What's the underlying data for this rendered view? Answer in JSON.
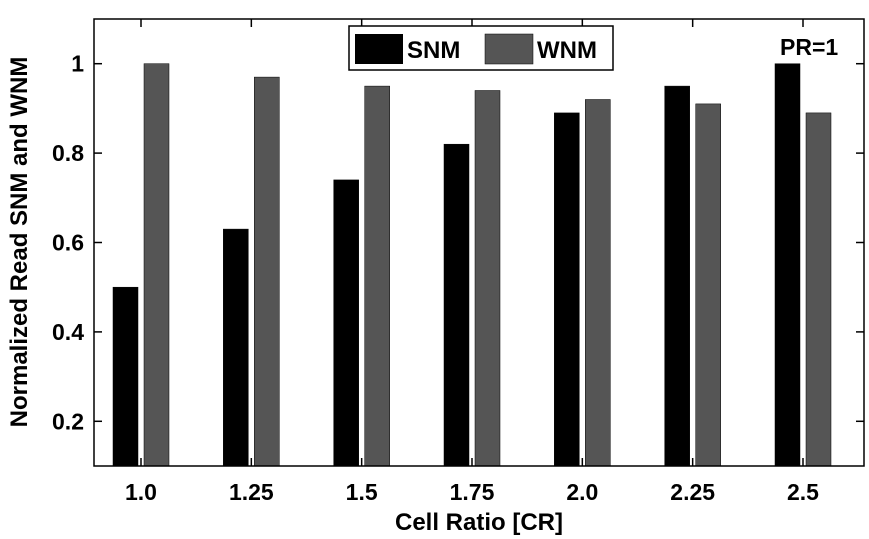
{
  "chart_data": {
    "type": "bar",
    "title": "",
    "xlabel": "Cell Ratio [CR]",
    "ylabel": "Normalized Read SNM and WNM",
    "categories": [
      "1.0",
      "1.25",
      "1.5",
      "1.75",
      "2.0",
      "2.25",
      "2.5"
    ],
    "series": [
      {
        "name": "SNM",
        "color": "#000000",
        "values": [
          0.5,
          0.63,
          0.74,
          0.82,
          0.89,
          0.95,
          1.0
        ]
      },
      {
        "name": "WNM",
        "color": "#555555",
        "values": [
          1.0,
          0.97,
          0.95,
          0.94,
          0.92,
          0.91,
          0.89
        ]
      }
    ],
    "ylim": [
      0.1,
      1.1
    ],
    "yticks": [
      0.2,
      0.4,
      0.6,
      0.8,
      1
    ],
    "grid": false,
    "legend_position": "top-center",
    "annotation": "PR=1"
  }
}
